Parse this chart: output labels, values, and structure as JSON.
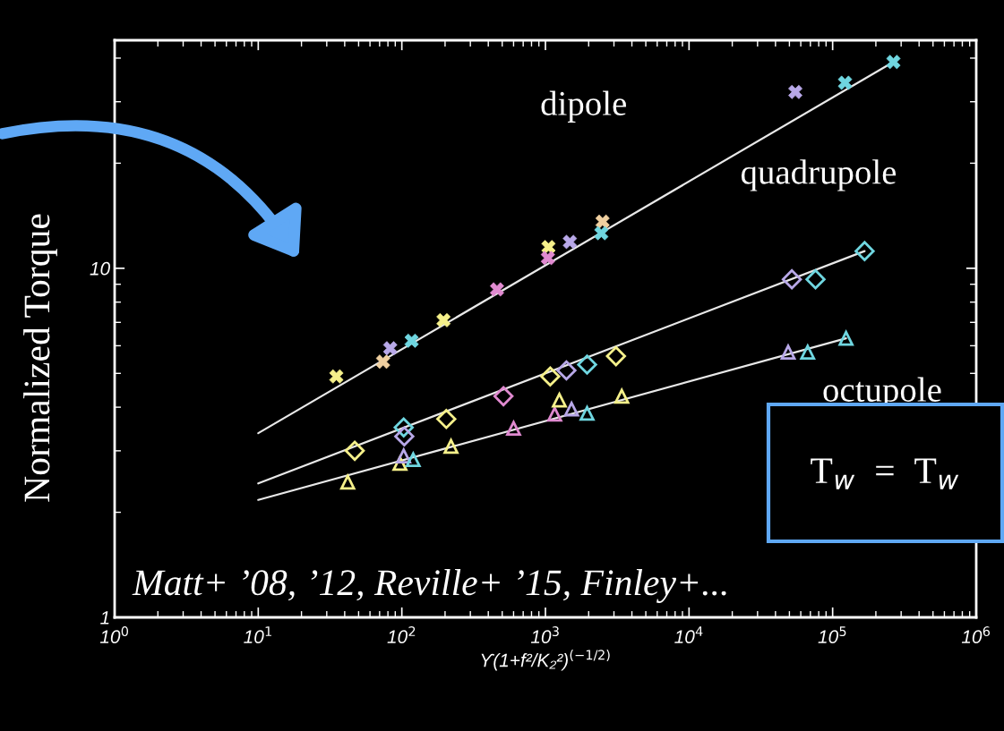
{
  "chart_data": {
    "type": "scatter",
    "xlabel": "ϒ(1+f²/K₂²)$^{(−1/2)}$",
    "ylabel": "Normalized Torque",
    "log": "xy",
    "grid": false,
    "xlim": [
      1,
      1000000
    ],
    "ylim": [
      1,
      45
    ],
    "xticks": [
      {
        "value": 1,
        "label": "10$^{0}$"
      },
      {
        "value": 10,
        "label": "10$^{1}$"
      },
      {
        "value": 100,
        "label": "10$^{2}$"
      },
      {
        "value": 1000,
        "label": "10$^{3}$"
      },
      {
        "value": 10000,
        "label": "10$^{4}$"
      },
      {
        "value": 100000,
        "label": "10$^{5}$"
      },
      {
        "value": 1000000,
        "label": "10$^{6}$"
      }
    ],
    "yticks": [
      1,
      10
    ],
    "series": [
      {
        "name": "dipole",
        "marker": "cross",
        "x": [
          35,
          74,
          83,
          117,
          195,
          460,
          1050,
          1040,
          1480,
          2500,
          2450,
          55000,
          122000,
          265000
        ],
        "values": [
          4.9,
          5.4,
          5.9,
          6.2,
          7.1,
          8.7,
          11.5,
          10.7,
          11.9,
          13.6,
          12.6,
          32,
          34,
          39
        ],
        "colors": [
          "#f5f08a",
          "#f0d0a0",
          "#b8a8e8",
          "#6fd6e0",
          "#f5f08a",
          "#e08ad0",
          "#f5f08a",
          "#e08ad0",
          "#b8a8e8",
          "#f0d0a0",
          "#6fd6e0",
          "#b8a8e8",
          "#6fd6e0",
          "#6fd6e0"
        ]
      },
      {
        "name": "quadrupole",
        "marker": "diamond",
        "x": [
          47,
          103,
          104,
          204,
          510,
          1080,
          1400,
          1950,
          3100,
          52000,
          76000,
          167000
        ],
        "values": [
          3.0,
          3.5,
          3.3,
          3.7,
          4.3,
          4.9,
          5.1,
          5.3,
          5.6,
          9.3,
          9.3,
          11.2
        ],
        "colors": [
          "#f5f08a",
          "#6fd6e0",
          "#b8a8e8",
          "#f5f08a",
          "#e08ad0",
          "#f5f08a",
          "#b8a8e8",
          "#6fd6e0",
          "#f5f08a",
          "#b8a8e8",
          "#6fd6e0",
          "#6fd6e0"
        ]
      },
      {
        "name": "octupole",
        "marker": "triangle",
        "x": [
          42,
          97,
          103,
          120,
          220,
          600,
          1160,
          1250,
          1520,
          1950,
          3400,
          49000,
          67000,
          124000
        ],
        "values": [
          2.44,
          2.76,
          2.9,
          2.83,
          3.09,
          3.48,
          3.82,
          4.19,
          3.95,
          3.84,
          4.3,
          5.75,
          5.75,
          6.3
        ],
        "colors": [
          "#f5f08a",
          "#f5f08a",
          "#b8a8e8",
          "#6fd6e0",
          "#f5f08a",
          "#e08ad0",
          "#e08ad0",
          "#f5f08a",
          "#b8a8e8",
          "#6fd6e0",
          "#f5f08a",
          "#b8a8e8",
          "#6fd6e0",
          "#6fd6e0"
        ]
      },
      {
        "type": "line",
        "color": "#e8e8e8",
        "line_style": "solid",
        "x": [
          10,
          265000
        ],
        "values": [
          3.37,
          39
        ]
      },
      {
        "type": "line",
        "color": "#e8e8e8",
        "line_style": "solid",
        "x": [
          10,
          167000
        ],
        "values": [
          2.42,
          11.2
        ]
      },
      {
        "type": "line",
        "color": "#e8e8e8",
        "line_style": "solid",
        "x": [
          10,
          124000
        ],
        "values": [
          2.17,
          6.3
        ]
      }
    ],
    "annotations": [
      "Matt+ ’08, ’12, Reville+ ’15, Finley+...",
      "T$_{w}$  =  T$_{w}$"
    ]
  }
}
